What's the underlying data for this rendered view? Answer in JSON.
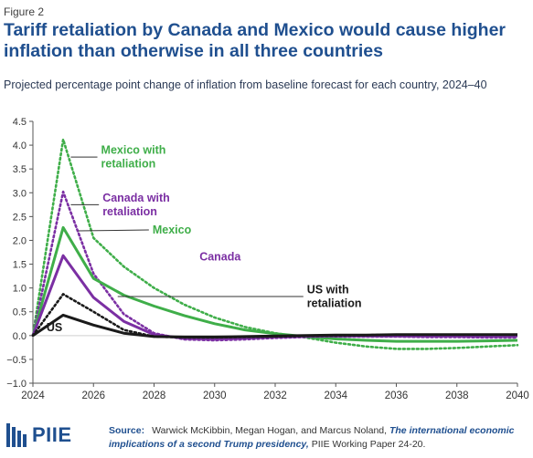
{
  "figure_label": "Figure 2",
  "title": "Tariff retaliation by Canada and Mexico would cause higher inflation than otherwise in all three countries",
  "subtitle": "Projected percentage point change of inflation from baseline forecast for each country, 2024–40",
  "logo_text": "PIIE",
  "source": {
    "label": "Source:",
    "authors": "Warwick McKibbin, Megan Hogan, and Marcus Noland, ",
    "title_italic": "The international economic implications of a second Trump presidency,",
    "rest": " PIIE Working Paper 24-20."
  },
  "colors": {
    "title": "#1f4f8f",
    "mexico": "#3fae49",
    "canada": "#7b2fa3",
    "us": "#1a1a1a",
    "axis": "#555555",
    "grid": "#e2e2e2"
  },
  "chart_data": {
    "type": "line",
    "title": "",
    "xlabel": "",
    "ylabel": "",
    "xlim": [
      2024,
      2040
    ],
    "ylim": [
      -1.0,
      4.5
    ],
    "yticks": [
      -1.0,
      -0.5,
      0.0,
      0.5,
      1.0,
      1.5,
      2.0,
      2.5,
      3.0,
      3.5,
      4.0,
      4.5
    ],
    "ytick_labels": [
      "−1.0",
      "−0.5",
      "0.0",
      "0.5",
      "1.0",
      "1.5",
      "2.0",
      "2.5",
      "3.0",
      "3.5",
      "4.0",
      "4.5"
    ],
    "xticks": [
      2024,
      2026,
      2028,
      2030,
      2032,
      2034,
      2036,
      2038,
      2040
    ],
    "xtick_labels": [
      "2024",
      "2026",
      "2028",
      "2030",
      "2032",
      "2034",
      "2036",
      "2038",
      "2040"
    ],
    "grid": false,
    "series": [
      {
        "name": "Mexico with retaliation",
        "style": "dotted",
        "color_key": "mexico",
        "x": [
          2024,
          2025,
          2026,
          2027,
          2028,
          2029,
          2030,
          2031,
          2032,
          2033,
          2034,
          2035,
          2036,
          2037,
          2038,
          2039,
          2040
        ],
        "y": [
          0.0,
          4.12,
          2.05,
          1.45,
          1.0,
          0.65,
          0.38,
          0.18,
          0.05,
          -0.04,
          -0.15,
          -0.23,
          -0.28,
          -0.28,
          -0.26,
          -0.23,
          -0.2
        ]
      },
      {
        "name": "Canada with retaliation",
        "style": "dotted",
        "color_key": "canada",
        "x": [
          2024,
          2025,
          2026,
          2027,
          2028,
          2029,
          2030,
          2031,
          2032,
          2033,
          2034,
          2035,
          2036,
          2037,
          2038,
          2039,
          2040
        ],
        "y": [
          0.0,
          3.02,
          1.3,
          0.45,
          0.05,
          -0.08,
          -0.1,
          -0.08,
          -0.05,
          -0.03,
          -0.02,
          -0.02,
          -0.02,
          -0.03,
          -0.03,
          -0.04,
          -0.04
        ]
      },
      {
        "name": "Mexico",
        "style": "solid",
        "color_key": "mexico",
        "x": [
          2024,
          2025,
          2026,
          2027,
          2028,
          2029,
          2030,
          2031,
          2032,
          2033,
          2034,
          2035,
          2036,
          2037,
          2038,
          2039,
          2040
        ],
        "y": [
          0.0,
          2.27,
          1.2,
          0.85,
          0.62,
          0.42,
          0.25,
          0.12,
          0.04,
          -0.02,
          -0.07,
          -0.1,
          -0.12,
          -0.12,
          -0.12,
          -0.11,
          -0.1
        ]
      },
      {
        "name": "Canada",
        "style": "solid",
        "color_key": "canada",
        "x": [
          2024,
          2025,
          2026,
          2027,
          2028,
          2029,
          2030,
          2031,
          2032,
          2033,
          2034,
          2035,
          2036,
          2037,
          2038,
          2039,
          2040
        ],
        "y": [
          0.0,
          1.68,
          0.8,
          0.3,
          0.02,
          -0.06,
          -0.07,
          -0.05,
          -0.03,
          -0.02,
          -0.01,
          -0.01,
          -0.01,
          -0.01,
          -0.01,
          -0.01,
          -0.01
        ]
      },
      {
        "name": "US with retaliation",
        "style": "dotted",
        "color_key": "us",
        "x": [
          2024,
          2025,
          2026,
          2027,
          2028,
          2029,
          2030,
          2031,
          2032,
          2033,
          2034,
          2035,
          2036,
          2037,
          2038,
          2039,
          2040
        ],
        "y": [
          0.0,
          0.87,
          0.5,
          0.12,
          -0.02,
          -0.04,
          -0.04,
          -0.03,
          -0.02,
          -0.01,
          0.0,
          0.01,
          0.02,
          0.02,
          0.02,
          0.02,
          0.02
        ]
      },
      {
        "name": "US",
        "style": "solid",
        "color_key": "us",
        "x": [
          2024,
          2025,
          2026,
          2027,
          2028,
          2029,
          2030,
          2031,
          2032,
          2033,
          2034,
          2035,
          2036,
          2037,
          2038,
          2039,
          2040
        ],
        "y": [
          0.0,
          0.43,
          0.22,
          0.05,
          -0.02,
          -0.03,
          -0.03,
          -0.02,
          -0.01,
          0.0,
          0.01,
          0.01,
          0.02,
          0.02,
          0.02,
          0.02,
          0.02
        ]
      }
    ],
    "annotations": [
      {
        "lines": [
          "Mexico with",
          "retaliation"
        ],
        "color_key": "mexico",
        "anchor_x": 2025.25,
        "anchor_y": 3.75,
        "text_x": 2026.25,
        "text_y": 3.75
      },
      {
        "lines": [
          "Canada with",
          "retaliation"
        ],
        "color_key": "canada",
        "anchor_x": 2025.25,
        "anchor_y": 2.75,
        "text_x": 2026.3,
        "text_y": 2.75
      },
      {
        "lines": [
          "Mexico"
        ],
        "color_key": "mexico",
        "anchor_x": 2025.5,
        "anchor_y": 2.2,
        "text_x": 2027.95,
        "text_y": 2.22
      },
      {
        "lines": [
          "Canada"
        ],
        "color_key": "canada",
        "anchor_x": null,
        "anchor_y": null,
        "text_x": 2029.5,
        "text_y": 1.65
      },
      {
        "lines": [
          "US with",
          "retaliation"
        ],
        "color_key": "us",
        "anchor_x": 2026.8,
        "anchor_y": 0.82,
        "text_x": 2033.05,
        "text_y": 0.82
      },
      {
        "lines": [
          "US"
        ],
        "color_key": "us",
        "anchor_x": null,
        "anchor_y": null,
        "text_x": 2024.45,
        "text_y": 0.17
      }
    ]
  }
}
